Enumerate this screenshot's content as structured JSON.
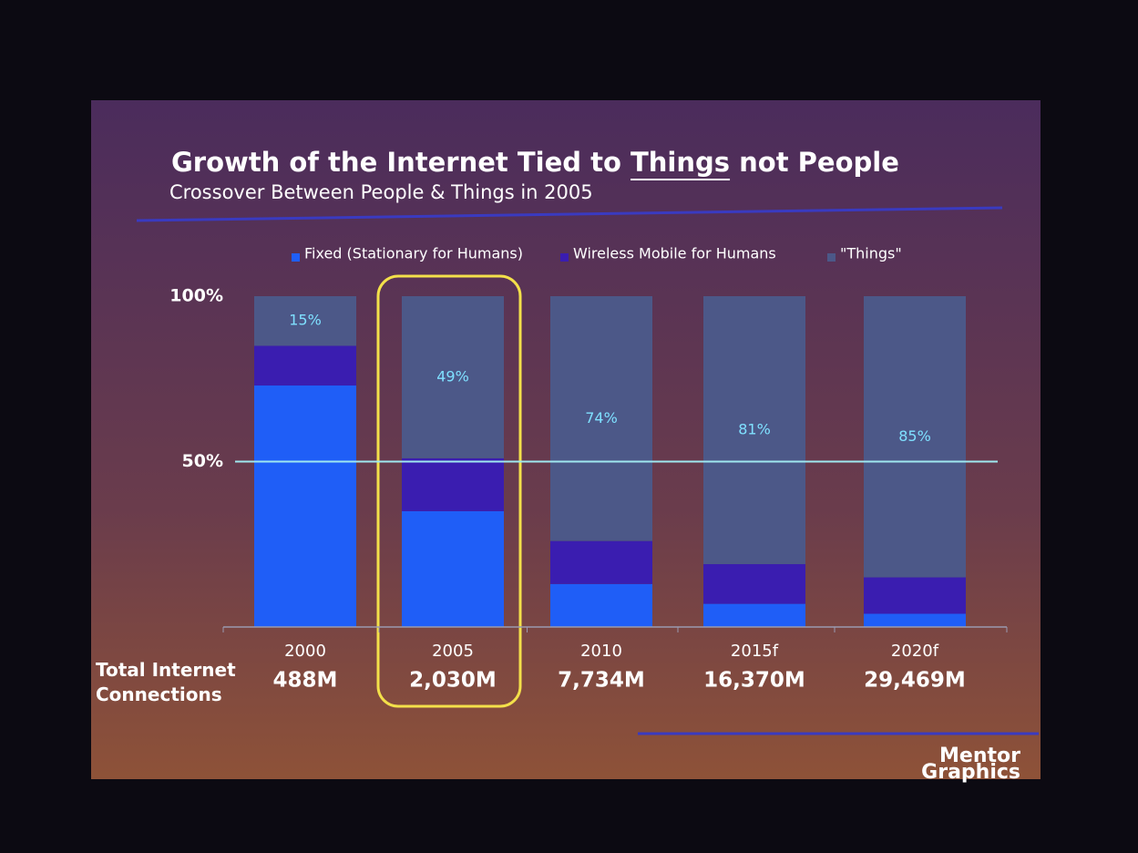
{
  "chart_data": {
    "type": "stacked_bar",
    "title": "Growth of the Internet Tied to Things not People",
    "underline": "Things",
    "subtitle": "Crossover Between People & Things in 2005",
    "categories": [
      "2000",
      "2005",
      "2010",
      "2015f",
      "2020f"
    ],
    "series": [
      {
        "name": "Fixed (Stationary for Humans)",
        "color": "#1f5ef7",
        "values": [
          73,
          35,
          13,
          7,
          4
        ]
      },
      {
        "name": "Wireless Mobile for Humans",
        "color": "#3a1db0",
        "values": [
          12,
          16,
          13,
          12,
          11
        ]
      },
      {
        "name": "\"Things\"",
        "color": "#4c5888",
        "values": [
          15,
          49,
          74,
          81,
          85
        ],
        "value_labels": [
          "15%",
          "49%",
          "74%",
          "81%",
          "85%"
        ]
      }
    ],
    "ylim": [
      0,
      100
    ],
    "yticks": [
      {
        "value": 50,
        "label": "50%"
      },
      {
        "value": 100,
        "label": "100%"
      }
    ],
    "reference_line": 50,
    "highlight": "2005",
    "totals": {
      "label": "Total Internet Connections",
      "values": [
        488,
        2030,
        7734,
        16370,
        29469
      ],
      "value_labels": [
        "488M",
        "2,030M",
        "7,734M",
        "16,370M",
        "29,469M"
      ]
    },
    "logo": [
      "Mentor",
      "Graphics"
    ]
  }
}
